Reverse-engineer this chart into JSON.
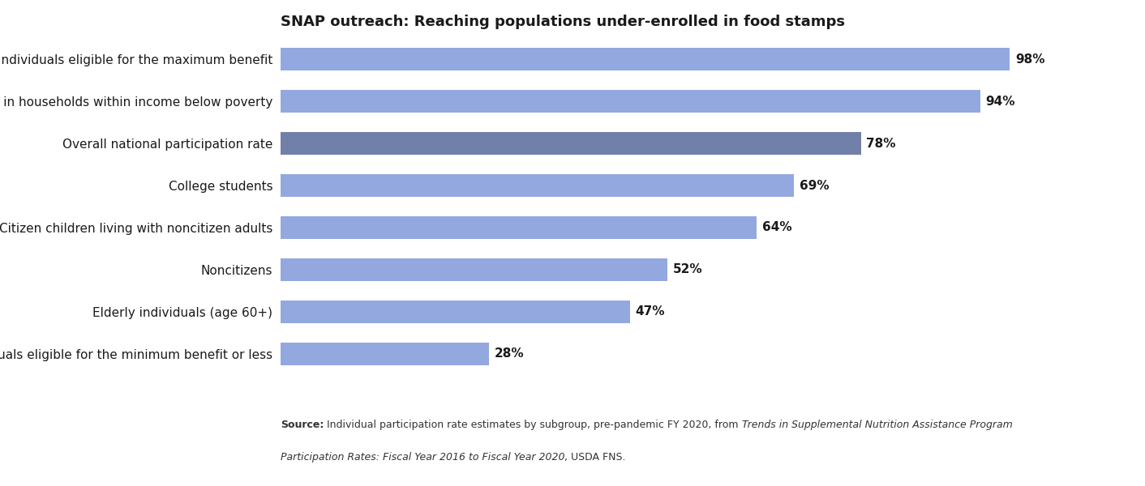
{
  "categories": [
    "Individuals eligible for the minimum benefit or less",
    "Elderly individuals (age 60+)",
    "Noncitizens",
    "Citizen children living with noncitizen adults",
    "College students",
    "Overall national participation rate",
    "Individuals in households within income below poverty",
    "Individuals eligible for the maximum benefit"
  ],
  "values": [
    28,
    47,
    52,
    64,
    69,
    78,
    94,
    98
  ],
  "bar_colors": [
    "#94a8e0",
    "#94a8e0",
    "#94a8e0",
    "#94a8e0",
    "#94a8e0",
    "#7180a8",
    "#94a8e0",
    "#94a8e0"
  ],
  "xlim": [
    0,
    110
  ],
  "bar_height": 0.55,
  "bg_color": "#ffffff",
  "text_color": "#1a1a1a",
  "source_color": "#333333",
  "label_fontsize": 11,
  "pct_fontsize": 11,
  "source_fontsize": 9,
  "source_line1_bold": "Source:",
  "source_line1_normal": " Individual participation rate estimates by subgroup, pre-pandemic FY 2020, from ",
  "source_line1_italic": "Trends in Supplemental Nutrition Assistance Program",
  "source_line2_italic": "Participation Rates: Fiscal Year 2016 to Fiscal Year 2020",
  "source_line2_normal": ", USDA FNS."
}
